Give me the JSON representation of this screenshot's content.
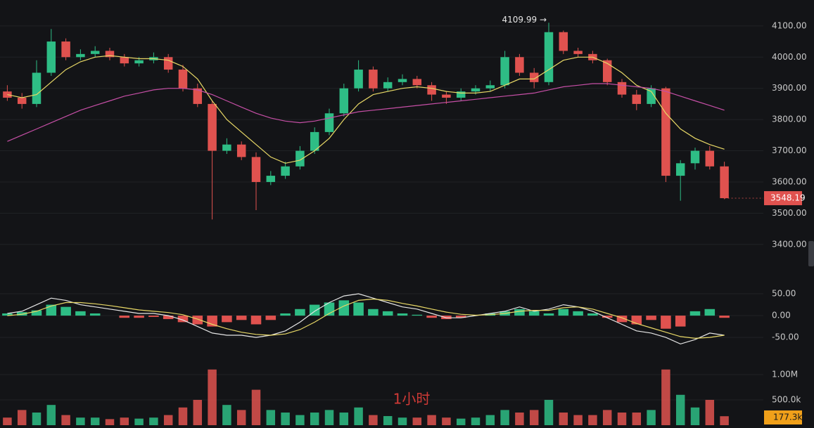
{
  "chart_data": [
    {
      "type": "candlestick",
      "open": [
        3890,
        3870,
        3850,
        3950,
        4050,
        4000,
        4010,
        4020,
        4000,
        3980,
        3990,
        4000,
        3960,
        3900,
        3850,
        3700,
        3720,
        3680,
        3600,
        3620,
        3650,
        3700,
        3760,
        3820,
        3900,
        3960,
        3900,
        3920,
        3930,
        3910,
        3880,
        3870,
        3890,
        3900,
        3910,
        4000,
        3950,
        3920,
        4080,
        4020,
        4010,
        3990,
        3920,
        3880,
        3850,
        3900,
        3620,
        3660,
        3700,
        3650
      ],
      "high": [
        3910,
        3885,
        3990,
        4090,
        4060,
        4025,
        4035,
        4030,
        4010,
        4000,
        4015,
        4010,
        3975,
        3915,
        3860,
        3740,
        3730,
        3695,
        3635,
        3665,
        3715,
        3775,
        3835,
        3915,
        3990,
        3970,
        3935,
        3945,
        3940,
        3920,
        3890,
        3900,
        3910,
        3925,
        4020,
        4010,
        3965,
        4109.99,
        4085,
        4030,
        4020,
        3995,
        3930,
        3895,
        3910,
        3905,
        3670,
        3710,
        3715,
        3665
      ],
      "low": [
        3860,
        3835,
        3840,
        3940,
        3990,
        3990,
        4000,
        3990,
        3970,
        3970,
        3980,
        3950,
        3890,
        3840,
        3480,
        3690,
        3670,
        3510,
        3590,
        3610,
        3640,
        3690,
        3750,
        3810,
        3890,
        3890,
        3890,
        3910,
        3900,
        3860,
        3850,
        3860,
        3880,
        3890,
        3900,
        3940,
        3900,
        3910,
        4010,
        4000,
        3980,
        3910,
        3870,
        3830,
        3840,
        3600,
        3540,
        3640,
        3640,
        3545
      ],
      "close": [
        3870,
        3850,
        3950,
        4050,
        4000,
        4010,
        4020,
        4000,
        3980,
        3990,
        4000,
        3960,
        3900,
        3850,
        3700,
        3720,
        3680,
        3600,
        3620,
        3650,
        3700,
        3760,
        3820,
        3900,
        3960,
        3900,
        3920,
        3930,
        3910,
        3880,
        3870,
        3890,
        3900,
        3910,
        4000,
        3950,
        3920,
        4080,
        4020,
        4010,
        3990,
        3920,
        3880,
        3850,
        3900,
        3620,
        3660,
        3700,
        3650,
        3548.19
      ],
      "up_color": "#2ebd85",
      "down_color": "#e0524f",
      "lines": [
        {
          "color": "#e8d866",
          "values": [
            3880,
            3870,
            3880,
            3920,
            3960,
            3985,
            4000,
            4005,
            4000,
            3995,
            3995,
            3990,
            3970,
            3930,
            3860,
            3800,
            3760,
            3720,
            3680,
            3660,
            3670,
            3700,
            3740,
            3800,
            3850,
            3880,
            3890,
            3900,
            3905,
            3900,
            3890,
            3885,
            3885,
            3890,
            3910,
            3930,
            3930,
            3960,
            3990,
            4000,
            4000,
            3980,
            3950,
            3910,
            3890,
            3820,
            3770,
            3740,
            3720,
            3705
          ]
        },
        {
          "color": "#c64fa6",
          "values": [
            3730,
            3750,
            3770,
            3790,
            3810,
            3830,
            3845,
            3860,
            3875,
            3885,
            3895,
            3900,
            3900,
            3895,
            3880,
            3860,
            3840,
            3820,
            3805,
            3795,
            3790,
            3795,
            3805,
            3815,
            3825,
            3830,
            3835,
            3840,
            3845,
            3850,
            3855,
            3860,
            3865,
            3870,
            3875,
            3880,
            3885,
            3895,
            3905,
            3910,
            3915,
            3915,
            3910,
            3905,
            3900,
            3890,
            3875,
            3860,
            3845,
            3830
          ]
        }
      ],
      "annotation": "4109.99 →",
      "ylim": [
        3305,
        4183
      ],
      "yticks": [
        {
          "value": 3400,
          "label": "3400.00"
        },
        {
          "value": 3500,
          "label": "3500.00"
        },
        {
          "value": 3600,
          "label": "3600.00"
        },
        {
          "value": 3700,
          "label": "3700.00"
        },
        {
          "value": 3800,
          "label": "3800.00"
        },
        {
          "value": 3900,
          "label": "3900.00"
        },
        {
          "value": 4000,
          "label": "4000.00"
        },
        {
          "value": 4100,
          "label": "4100.00"
        }
      ],
      "grid": true
    },
    {
      "type": "macd",
      "values": [
        5,
        8,
        12,
        25,
        20,
        10,
        5,
        0,
        -5,
        -5,
        -3,
        -8,
        -15,
        -20,
        -25,
        -15,
        -10,
        -20,
        -10,
        5,
        15,
        25,
        30,
        35,
        30,
        15,
        10,
        5,
        2,
        -5,
        -8,
        -5,
        0,
        5,
        10,
        15,
        10,
        5,
        15,
        10,
        5,
        -5,
        -15,
        -20,
        -10,
        -30,
        -25,
        10,
        15,
        -5
      ],
      "lines": [
        {
          "color": "#e6e6e6",
          "values": [
            5,
            10,
            25,
            40,
            35,
            25,
            20,
            15,
            10,
            5,
            5,
            0,
            -10,
            -25,
            -40,
            -45,
            -45,
            -50,
            -45,
            -35,
            -15,
            10,
            30,
            45,
            50,
            40,
            30,
            20,
            15,
            5,
            -5,
            -5,
            0,
            5,
            10,
            20,
            10,
            15,
            25,
            20,
            10,
            -5,
            -20,
            -35,
            -40,
            -50,
            -65,
            -55,
            -40,
            -45
          ]
        },
        {
          "color": "#e8d866",
          "values": [
            0,
            3,
            10,
            22,
            30,
            30,
            27,
            23,
            18,
            13,
            10,
            7,
            2,
            -8,
            -20,
            -30,
            -38,
            -43,
            -45,
            -42,
            -32,
            -15,
            5,
            22,
            35,
            38,
            35,
            28,
            22,
            15,
            8,
            3,
            1,
            2,
            5,
            10,
            12,
            12,
            18,
            20,
            15,
            5,
            -5,
            -18,
            -28,
            -38,
            -48,
            -52,
            -50,
            -45
          ]
        }
      ],
      "up_color": "#2ebd85",
      "down_color": "#e0524f",
      "ylim": [
        -82,
        71
      ],
      "yticks": [
        {
          "value": -50,
          "label": "-50.00"
        },
        {
          "value": 0,
          "label": "0.00"
        },
        {
          "value": 50,
          "label": "50.00"
        }
      ],
      "grid": true
    },
    {
      "type": "bar",
      "values": [
        150000,
        300000,
        250000,
        400000,
        200000,
        150000,
        150000,
        120000,
        150000,
        130000,
        150000,
        200000,
        350000,
        500000,
        1100000,
        400000,
        300000,
        700000,
        300000,
        250000,
        200000,
        250000,
        300000,
        250000,
        350000,
        200000,
        180000,
        150000,
        150000,
        200000,
        150000,
        130000,
        150000,
        200000,
        300000,
        250000,
        300000,
        500000,
        250000,
        200000,
        200000,
        300000,
        250000,
        250000,
        300000,
        1100000,
        600000,
        350000,
        500000,
        177300
      ],
      "current_label": "177.3k",
      "up_color": "#2ebd85",
      "down_color": "#e0524f",
      "watermark": "1小时",
      "ylim": [
        0,
        1180000
      ],
      "yticks": [
        {
          "value": 500000,
          "label": "500.0k"
        },
        {
          "value": 1000000,
          "label": "1.00M"
        }
      ],
      "grid": true
    }
  ]
}
